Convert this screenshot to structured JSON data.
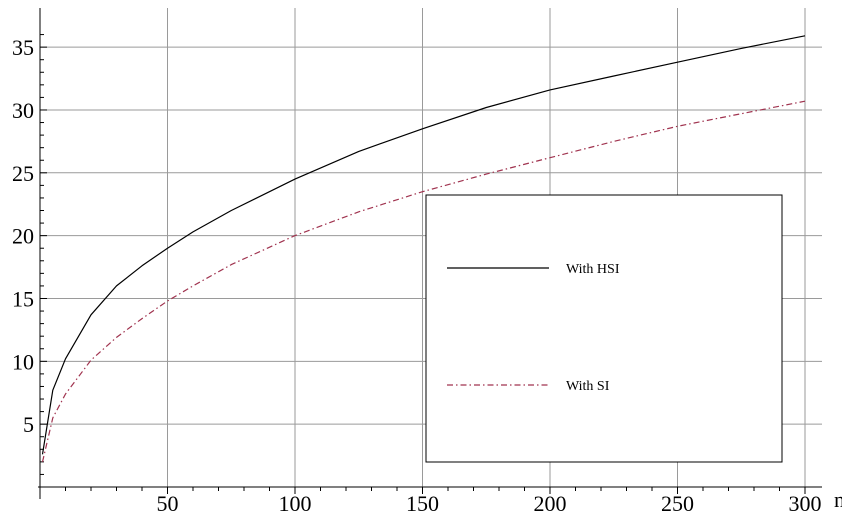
{
  "chart_data": {
    "type": "line",
    "title": "",
    "xlabel": "n",
    "ylabel": "",
    "xlim": [
      0,
      300
    ],
    "ylim": [
      0,
      37
    ],
    "x_ticks": [
      50,
      100,
      150,
      200,
      250,
      300
    ],
    "y_ticks": [
      5,
      10,
      15,
      20,
      25,
      30,
      35
    ],
    "grid": true,
    "legend_position": "center-right",
    "x": [
      1,
      5,
      10,
      20,
      30,
      40,
      50,
      60,
      75,
      100,
      125,
      150,
      175,
      200,
      225,
      250,
      275,
      300
    ],
    "series": [
      {
        "name": "With HSI",
        "color": "#000000",
        "dash": "solid",
        "values": [
          2.6,
          7.7,
          10.2,
          13.7,
          16.0,
          17.6,
          19.0,
          20.3,
          22.0,
          24.5,
          26.7,
          28.5,
          30.2,
          31.6,
          32.7,
          33.8,
          34.9,
          35.9
        ]
      },
      {
        "name": "With SI",
        "color": "#a0334f",
        "dash": "dashdot",
        "values": [
          2.0,
          5.5,
          7.4,
          10.1,
          11.9,
          13.4,
          14.8,
          16.0,
          17.7,
          20.0,
          21.9,
          23.5,
          24.9,
          26.2,
          27.5,
          28.7,
          29.7,
          30.7
        ]
      }
    ]
  }
}
